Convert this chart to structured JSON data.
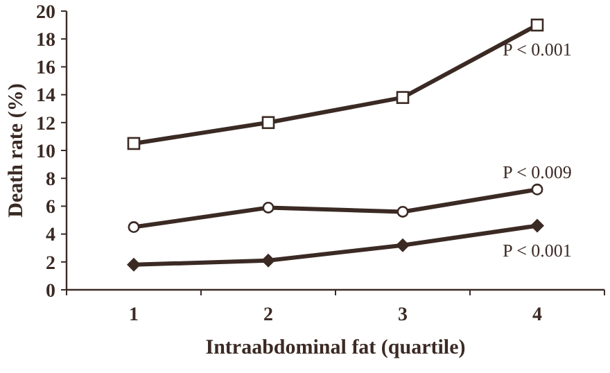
{
  "chart_data": {
    "type": "line",
    "xlabel": "Intraabdominal fat (quartile)",
    "ylabel": "Death rate (%)",
    "categories": [
      "1",
      "2",
      "3",
      "4"
    ],
    "ylim": [
      0,
      20
    ],
    "yticks": [
      0,
      2,
      4,
      6,
      8,
      10,
      12,
      14,
      16,
      18,
      20
    ],
    "grid": false,
    "series": [
      {
        "color": "#3b2a24",
        "marker": "square",
        "values": [
          10.5,
          12.0,
          13.8,
          19.0
        ]
      },
      {
        "color": "#3b2a24",
        "marker": "circle",
        "values": [
          4.5,
          5.9,
          5.6,
          7.2
        ]
      },
      {
        "color": "#3b2a24",
        "marker": "diamond",
        "values": [
          1.8,
          2.1,
          3.2,
          4.6
        ]
      }
    ],
    "annotations": [
      {
        "text": "P < 0.001",
        "x": "4",
        "y": 19.0
      },
      {
        "text": "P < 0.009",
        "x": "4",
        "y": 7.2
      },
      {
        "text": "P < 0.001",
        "x": "4",
        "y": 4.6
      }
    ]
  }
}
